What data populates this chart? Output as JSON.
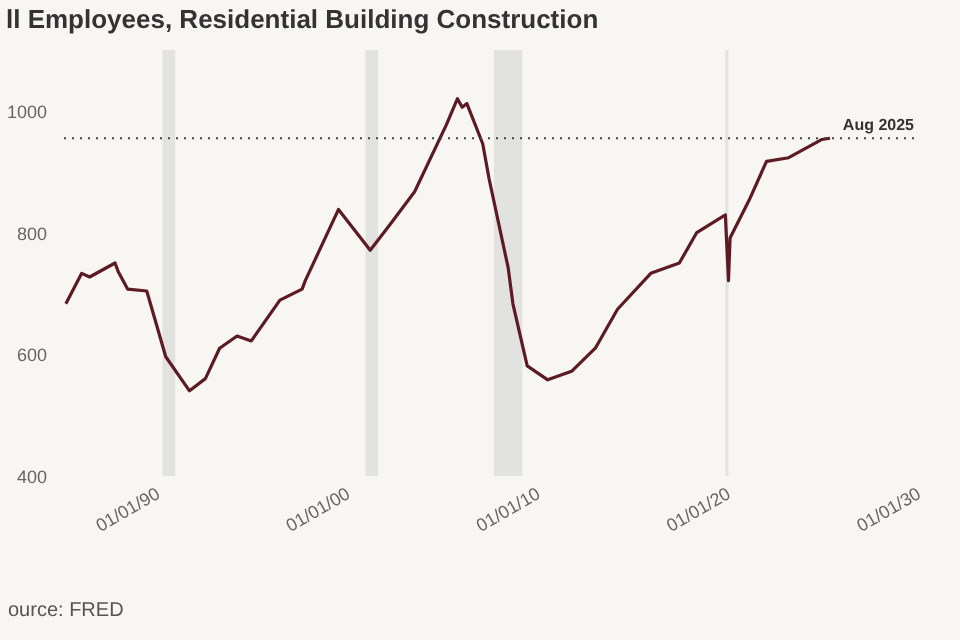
{
  "chart_data": {
    "type": "line",
    "title": "ll Employees, Residential Building Construction",
    "x": [
      "1985-06",
      "1986-04",
      "1986-09",
      "1988-01",
      "1988-03",
      "1988-09",
      "1989-09",
      "1990-09",
      "1991-12",
      "1992-10",
      "1993-07",
      "1994-06",
      "1995-03",
      "1996-09",
      "1997-11",
      "1998-01",
      "1999-10",
      "2001-06",
      "2002-07",
      "2003-10",
      "2005-06",
      "2006-01",
      "2006-04",
      "2006-07",
      "2007-05",
      "2007-09",
      "2008-09",
      "2008-12",
      "2009-09",
      "2010-10",
      "2012-01",
      "2013-04",
      "2014-06",
      "2016-03",
      "2017-09",
      "2018-08",
      "2020-02",
      "2020-04",
      "2020-05",
      "2021-05",
      "2022-04",
      "2023-06",
      "2025-03",
      "2025-08"
    ],
    "series": [
      {
        "color": "#5c1a24",
        "values": [
          683,
          733,
          727,
          750,
          736,
          707,
          704,
          596,
          540,
          560,
          610,
          630,
          622,
          689,
          707,
          721,
          838,
          771,
          815,
          867,
          977,
          1020,
          1006,
          1012,
          946,
          888,
          742,
          683,
          581,
          558,
          572,
          610,
          674,
          733,
          750,
          800,
          829,
          721,
          791,
          853,
          917,
          923,
          953,
          955
        ]
      }
    ],
    "xlim": [
      "1985-01",
      "2030-01"
    ],
    "xticks": [
      {
        "value": "1990-01",
        "label": "01/01/90"
      },
      {
        "value": "2000-01",
        "label": "01/01/00"
      },
      {
        "value": "2010-01",
        "label": "01/01/10"
      },
      {
        "value": "2020-01",
        "label": "01/01/20"
      },
      {
        "value": "2030-01",
        "label": "01/01/30"
      }
    ],
    "ylim": [
      400,
      1100
    ],
    "yticks": [
      400,
      600,
      800,
      1000
    ],
    "ref_lines": [
      {
        "axis": "y",
        "value": 955,
        "label": "Aug 2025",
        "color": "#444444",
        "line_style": "dotted"
      }
    ],
    "bands": [
      {
        "axis": "x",
        "from": "1990-07",
        "to": "1991-03",
        "color": "#e2e2e0"
      },
      {
        "axis": "x",
        "from": "2001-03",
        "to": "2001-11",
        "color": "#e2e2e0"
      },
      {
        "axis": "x",
        "from": "2007-12",
        "to": "2009-06",
        "color": "#e2e2e0"
      },
      {
        "axis": "x",
        "from": "2020-02",
        "to": "2020-04",
        "color": "#e2e2e0"
      }
    ],
    "annotations": [
      "ource: FRED"
    ]
  }
}
